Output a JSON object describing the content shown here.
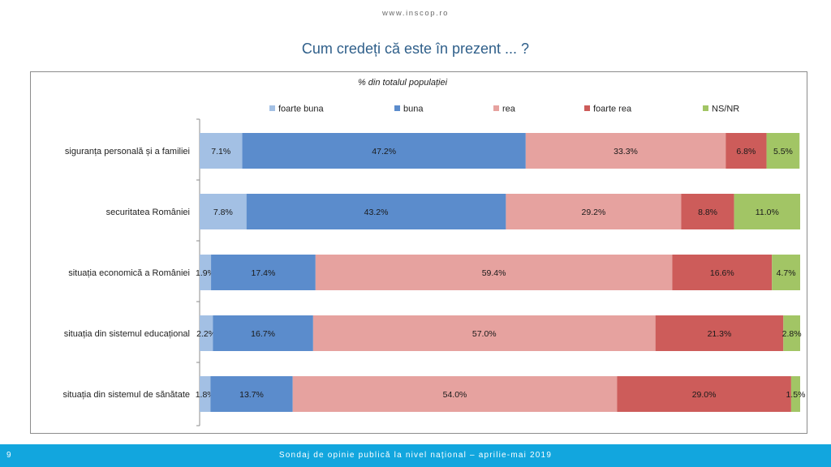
{
  "header": {
    "site_url": "www.inscop.ro"
  },
  "slide": {
    "title": "Cum credeți că este în prezent ... ?"
  },
  "footer": {
    "page_number": "9",
    "text": "Sondaj de opinie publică la nivel național – aprilie-mai 2019"
  },
  "chart_data": {
    "type": "bar",
    "orientation": "horizontal",
    "stacked": true,
    "subtitle": "% din totalul populației",
    "legend_position": "top",
    "grid": false,
    "xlim": [
      0,
      100
    ],
    "categories": [
      "siguranța personală și a familiei",
      "securitatea României",
      "situația economică a României",
      "situația din sistemul educațional",
      "situația din sistemul de sănătate"
    ],
    "series": [
      {
        "name": "foarte buna",
        "color": "#a3c0e4",
        "values": [
          7.1,
          7.8,
          1.9,
          2.2,
          1.8
        ],
        "labels": [
          "7.1%",
          "7.8%",
          "1.9%",
          "2.2%",
          "1.8%"
        ]
      },
      {
        "name": "buna",
        "color": "#5b8ccc",
        "values": [
          47.2,
          43.2,
          17.4,
          16.7,
          13.7
        ],
        "labels": [
          "47.2%",
          "43.2%",
          "17.4%",
          "16.7%",
          "13.7%"
        ]
      },
      {
        "name": "rea",
        "color": "#e6a29f",
        "values": [
          33.3,
          29.2,
          59.4,
          57.0,
          54.0
        ],
        "labels": [
          "33.3%",
          "29.2%",
          "59.4%",
          "57.0%",
          "54.0%"
        ]
      },
      {
        "name": "foarte rea",
        "color": "#cd5c5a",
        "values": [
          6.8,
          8.8,
          16.6,
          21.3,
          29.0
        ],
        "labels": [
          "6.8%",
          "8.8%",
          "16.6%",
          "21.3%",
          "29.0%"
        ]
      },
      {
        "name": "NS/NR",
        "color": "#a2c565",
        "values": [
          5.5,
          11.0,
          4.7,
          2.8,
          1.5
        ],
        "labels": [
          "5.5%",
          "11.0%",
          "4.7%",
          "2.8%",
          "1.5%"
        ]
      }
    ]
  }
}
